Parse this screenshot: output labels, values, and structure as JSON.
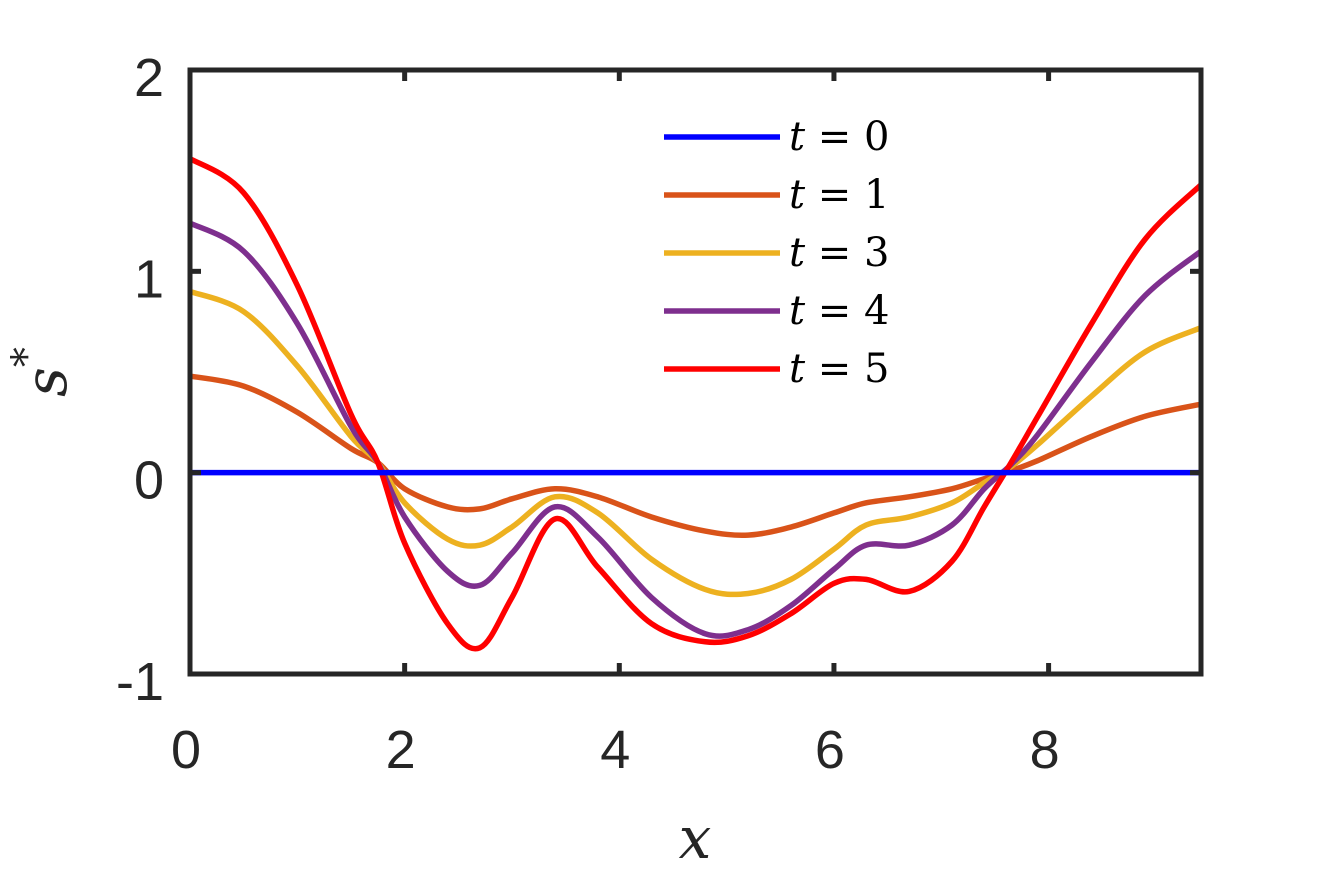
{
  "chart_data": {
    "type": "line",
    "xlabel": "x",
    "ylabel": "s",
    "ylabel_superscript": "*",
    "xlim": [
      0,
      9.42
    ],
    "ylim": [
      -1,
      2
    ],
    "xticks": [
      0,
      2,
      4,
      6,
      8
    ],
    "yticks": [
      -1,
      0,
      1,
      2
    ],
    "xtick_labels": [
      "0",
      "2",
      "4",
      "6",
      "8"
    ],
    "ytick_labels": [
      "-1",
      "0",
      "1",
      "2"
    ],
    "grid": false,
    "legend_position": "top-center",
    "x": [
      0,
      0.5,
      1.0,
      1.5,
      1.75,
      2.0,
      2.4,
      2.7,
      3.0,
      3.4,
      3.8,
      4.3,
      4.8,
      5.2,
      5.6,
      6.0,
      6.3,
      6.7,
      7.1,
      7.4,
      7.65,
      7.9,
      8.4,
      8.9,
      9.42
    ],
    "series": [
      {
        "name": "t = 0",
        "color": "#0000ff",
        "values": [
          0,
          0,
          0,
          0,
          0,
          0,
          0,
          0,
          0,
          0,
          0,
          0,
          0,
          0,
          0,
          0,
          0,
          0,
          0,
          0,
          0,
          0,
          0,
          0,
          0
        ]
      },
      {
        "name": "t = 1",
        "color": "#d95319",
        "values": [
          0.48,
          0.43,
          0.3,
          0.12,
          0.05,
          -0.08,
          -0.17,
          -0.18,
          -0.13,
          -0.08,
          -0.12,
          -0.22,
          -0.29,
          -0.31,
          -0.27,
          -0.2,
          -0.15,
          -0.12,
          -0.08,
          -0.03,
          0.01,
          0.06,
          0.18,
          0.28,
          0.34
        ]
      },
      {
        "name": "t = 3",
        "color": "#edb120",
        "values": [
          0.9,
          0.8,
          0.53,
          0.18,
          0.05,
          -0.15,
          -0.33,
          -0.36,
          -0.27,
          -0.12,
          -0.2,
          -0.43,
          -0.58,
          -0.6,
          -0.53,
          -0.38,
          -0.26,
          -0.22,
          -0.15,
          -0.05,
          0.03,
          0.14,
          0.38,
          0.6,
          0.72
        ]
      },
      {
        "name": "t = 4",
        "color": "#7e2f8e",
        "values": [
          1.24,
          1.1,
          0.74,
          0.23,
          0.05,
          -0.22,
          -0.49,
          -0.56,
          -0.4,
          -0.17,
          -0.32,
          -0.62,
          -0.8,
          -0.78,
          -0.66,
          -0.48,
          -0.36,
          -0.36,
          -0.26,
          -0.08,
          0.04,
          0.19,
          0.55,
          0.88,
          1.1
        ]
      },
      {
        "name": "t = 5",
        "color": "#ff0000",
        "values": [
          1.56,
          1.39,
          0.93,
          0.29,
          0.05,
          -0.35,
          -0.75,
          -0.87,
          -0.62,
          -0.23,
          -0.47,
          -0.75,
          -0.84,
          -0.81,
          -0.7,
          -0.55,
          -0.53,
          -0.59,
          -0.44,
          -0.17,
          0.05,
          0.28,
          0.74,
          1.16,
          1.43
        ]
      }
    ]
  }
}
